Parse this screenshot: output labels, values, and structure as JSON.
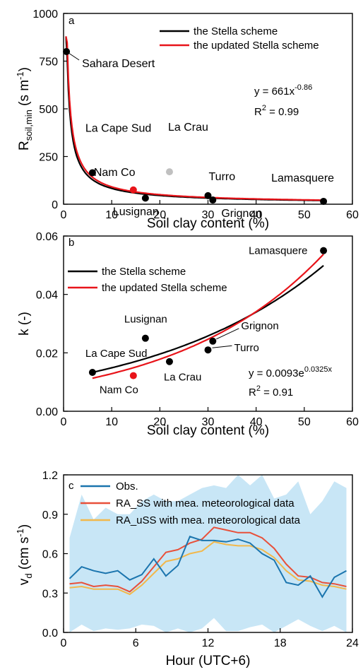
{
  "chart_data": [
    {
      "panel": "a",
      "type": "scatter",
      "xlabel": "Soil clay content (%)",
      "ylabel": "R",
      "ylabel_sub": "soil,min",
      "ylabel_unit_a": " (s m",
      "ylabel_unit_sup": "-1",
      "ylabel_unit_b": ")",
      "xlim": [
        0,
        60
      ],
      "ylim": [
        0,
        1000
      ],
      "xticks": [
        0,
        10,
        20,
        30,
        40,
        50,
        60
      ],
      "yticks": [
        0,
        250,
        500,
        750,
        1000
      ],
      "legend": [
        "the Stella scheme",
        "the updated Stella scheme"
      ],
      "legend_colors": [
        "#000000",
        "#e8141a"
      ],
      "equation": "y = 661x",
      "equation_sup": "-0.86",
      "r2": "R",
      "r2_sup": "2",
      "r2_val": " = 0.99",
      "points": [
        {
          "x": 0.6,
          "y": 800,
          "label": "Sahara Desert",
          "color": "#000000"
        },
        {
          "x": 6,
          "y": 165,
          "label": "La Cape Sud",
          "color": "#000000"
        },
        {
          "x": 14.5,
          "y": 75,
          "label": "Nam Co",
          "color": "#e8141a"
        },
        {
          "x": 22,
          "y": 170,
          "label": "La Crau",
          "color": "#c0c0c0"
        },
        {
          "x": 17,
          "y": 32,
          "label": "Lusignan",
          "color": "#000000"
        },
        {
          "x": 30,
          "y": 45,
          "label": "Turro",
          "color": "#000000"
        },
        {
          "x": 31,
          "y": 22,
          "label": "Grignon",
          "color": "#000000"
        },
        {
          "x": 54,
          "y": 15,
          "label": "Lamasquere",
          "color": "#000000"
        }
      ],
      "curves": [
        {
          "name": "the Stella scheme",
          "a": 600,
          "b": -0.86,
          "color": "#000000"
        },
        {
          "name": "the updated Stella scheme",
          "a": 661,
          "b": -0.86,
          "color": "#e8141a"
        }
      ]
    },
    {
      "panel": "b",
      "type": "scatter",
      "xlabel": "Soil clay content (%)",
      "ylabel": "k (-)",
      "xlim": [
        0,
        60
      ],
      "ylim": [
        0,
        0.06
      ],
      "xticks": [
        0,
        10,
        20,
        30,
        40,
        50,
        60
      ],
      "yticks": [
        "0.00",
        "0.02",
        "0.04",
        "0.06"
      ],
      "legend": [
        "the Stella scheme",
        "the updated Stella scheme"
      ],
      "legend_colors": [
        "#000000",
        "#e8141a"
      ],
      "equation": "y = 0.0093e",
      "equation_sup": "0.0325x",
      "r2": "R",
      "r2_sup": "2",
      "r2_val": " = 0.91",
      "points": [
        {
          "x": 6,
          "y": 0.0133,
          "label": "La Cape Sud",
          "color": "#000000"
        },
        {
          "x": 14.5,
          "y": 0.0122,
          "label": "Nam Co",
          "color": "#e8141a"
        },
        {
          "x": 17,
          "y": 0.025,
          "label": "Lusignan",
          "color": "#000000"
        },
        {
          "x": 22,
          "y": 0.017,
          "label": "La Crau",
          "color": "#000000"
        },
        {
          "x": 30,
          "y": 0.021,
          "label": "Turro",
          "color": "#000000"
        },
        {
          "x": 31,
          "y": 0.024,
          "label": "Grignon",
          "color": "#000000"
        },
        {
          "x": 54,
          "y": 0.055,
          "label": "Lamasquere",
          "color": "#000000"
        }
      ],
      "curves": [
        {
          "name": "the Stella scheme",
          "a": 0.0113,
          "b": 0.0275,
          "color": "#000000",
          "x0": 6,
          "x1": 54
        },
        {
          "name": "the updated Stella scheme",
          "a": 0.0093,
          "b": 0.0325,
          "color": "#e8141a",
          "x0": 6,
          "x1": 54
        }
      ]
    },
    {
      "panel": "c",
      "type": "line",
      "xlabel": "Hour (UTC+6)",
      "ylabel": "v",
      "ylabel_sub": "d",
      "ylabel_unit_a": " (cm s",
      "ylabel_unit_sup": "-1",
      "ylabel_unit_b": ")",
      "xlim": [
        0,
        24
      ],
      "ylim": [
        0,
        1.2
      ],
      "xticks": [
        0,
        6,
        12,
        18,
        24
      ],
      "yticks": [
        "0.0",
        "0.3",
        "0.6",
        "0.9",
        "1.2"
      ],
      "x": [
        0.5,
        1.5,
        2.5,
        3.5,
        4.5,
        5.5,
        6.5,
        7.5,
        8.5,
        9.5,
        10.5,
        11.5,
        12.5,
        13.5,
        14.5,
        15.5,
        16.5,
        17.5,
        18.5,
        19.5,
        20.5,
        21.5,
        22.5,
        23.5
      ],
      "series": [
        {
          "name": "Obs.",
          "color": "#1b75ae",
          "values": [
            0.41,
            0.5,
            0.47,
            0.45,
            0.47,
            0.4,
            0.44,
            0.56,
            0.43,
            0.51,
            0.73,
            0.7,
            0.7,
            0.69,
            0.71,
            0.68,
            0.6,
            0.55,
            0.38,
            0.36,
            0.43,
            0.27,
            0.42,
            0.47
          ]
        },
        {
          "name": "RA_SS with mea. meteorological data",
          "color": "#e8503a",
          "values": [
            0.37,
            0.38,
            0.35,
            0.36,
            0.35,
            0.31,
            0.39,
            0.5,
            0.61,
            0.63,
            0.68,
            0.71,
            0.8,
            0.78,
            0.76,
            0.76,
            0.72,
            0.64,
            0.52,
            0.43,
            0.42,
            0.38,
            0.37,
            0.35
          ]
        },
        {
          "name": "RA_uSS with mea. meteorological data",
          "color": "#f2b84b",
          "values": [
            0.34,
            0.35,
            0.33,
            0.33,
            0.33,
            0.29,
            0.36,
            0.45,
            0.54,
            0.56,
            0.6,
            0.62,
            0.69,
            0.67,
            0.66,
            0.66,
            0.63,
            0.57,
            0.47,
            0.4,
            0.39,
            0.36,
            0.35,
            0.33
          ]
        }
      ],
      "band": {
        "color": "#c8e6f6",
        "upper": [
          0.72,
          1.05,
          0.86,
          0.95,
          0.9,
          0.9,
          1.0,
          1.05,
          1.0,
          1.0,
          1.05,
          1.1,
          1.12,
          1.1,
          1.2,
          1.12,
          1.2,
          1.02,
          1.05,
          1.15,
          0.9,
          1.0,
          1.15,
          1.1
        ],
        "lower": [
          0.0,
          0.06,
          0.01,
          0.03,
          0.02,
          0.03,
          0.06,
          0.05,
          0.0,
          0.03,
          0.0,
          0.03,
          0.11,
          0.01,
          0.01,
          0.04,
          0.06,
          0.0,
          0.05,
          0.1,
          0.05,
          0.01,
          0.05,
          0.0
        ]
      }
    }
  ]
}
